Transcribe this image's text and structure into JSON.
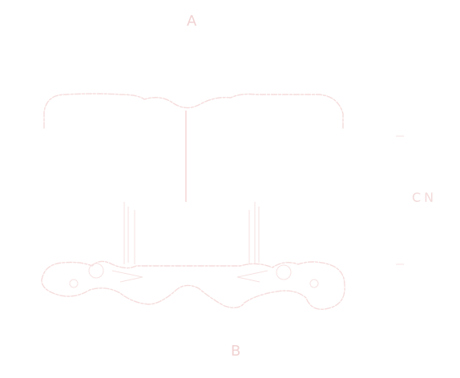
{
  "labels": {
    "top": "A",
    "bottom": "B",
    "right": "CN"
  },
  "colors": {
    "line": "#f3caca",
    "outline": "#f6dcdc",
    "text": "#f1d2d2"
  }
}
